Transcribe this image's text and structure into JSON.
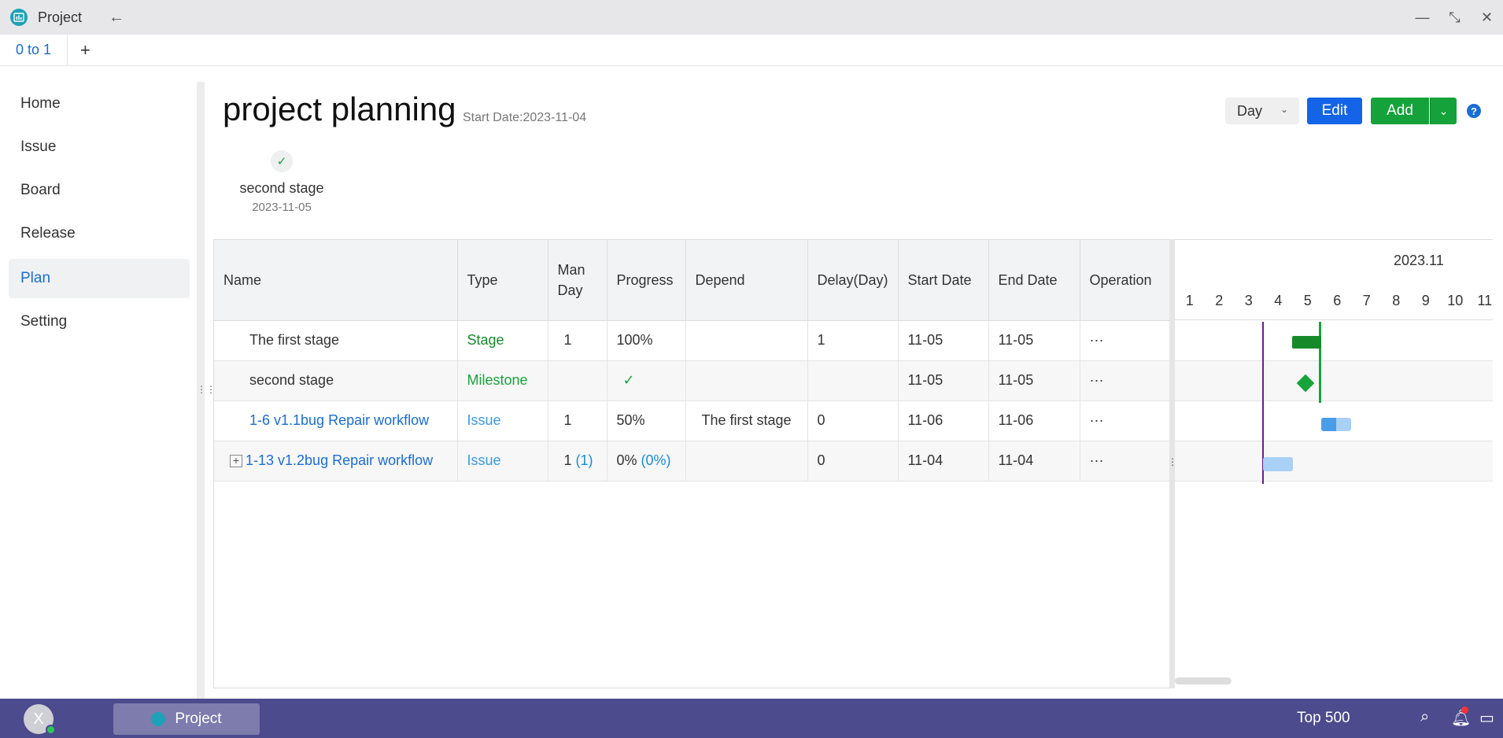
{
  "window": {
    "title": "Project"
  },
  "tabs": [
    {
      "label": "0 to 1"
    }
  ],
  "tab_add": "+",
  "sidebar": {
    "items": [
      {
        "label": "Home"
      },
      {
        "label": "Issue"
      },
      {
        "label": "Board"
      },
      {
        "label": "Release"
      },
      {
        "label": "Plan",
        "active": true
      },
      {
        "label": "Setting"
      }
    ]
  },
  "header": {
    "title": "project planning",
    "start_date": "Start Date:2023-11-04",
    "view_select": "Day",
    "edit_label": "Edit",
    "add_label": "Add",
    "help": "?"
  },
  "milestone": {
    "name": "second stage",
    "date": "2023-11-05"
  },
  "table": {
    "columns": [
      "Name",
      "Type",
      "Man Day",
      "Progress",
      "Depend",
      "Delay(Day)",
      "Start Date",
      "End Date",
      "Operation"
    ],
    "rows": [
      {
        "name": "The first stage",
        "type": "Stage",
        "man_day": "1",
        "man_day_sub": "",
        "progress": "100%",
        "progress_sub": "",
        "depend": "",
        "delay": "1",
        "start": "11-05",
        "end": "11-05",
        "ops": "···"
      },
      {
        "name": "second stage",
        "type": "Milestone",
        "man_day": "",
        "man_day_sub": "",
        "progress": "✓",
        "progress_sub": "",
        "depend": "",
        "delay": "",
        "start": "11-05",
        "end": "11-05",
        "ops": "···"
      },
      {
        "name": "1-6 v1.1bug Repair workflow",
        "type": "Issue",
        "man_day": "1",
        "man_day_sub": "",
        "progress": "50%",
        "progress_sub": "",
        "depend": "The first stage",
        "delay": "0",
        "start": "11-06",
        "end": "11-06",
        "ops": "···"
      },
      {
        "name": "1-13 v1.2bug Repair workflow",
        "type": "Issue",
        "man_day": "1",
        "man_day_sub": "(1)",
        "progress": "0%",
        "progress_sub": "(0%)",
        "depend": "",
        "delay": "0",
        "start": "11-04",
        "end": "11-04",
        "ops": "···"
      }
    ]
  },
  "gantt": {
    "month": "2023.11",
    "days": [
      "1",
      "2",
      "3",
      "4",
      "5",
      "6",
      "7",
      "8",
      "9",
      "10",
      "11"
    ],
    "issue_progress": 0.5
  },
  "taskbar": {
    "avatar_letter": "X",
    "app_label": "Project",
    "status_text": "Top 500"
  }
}
